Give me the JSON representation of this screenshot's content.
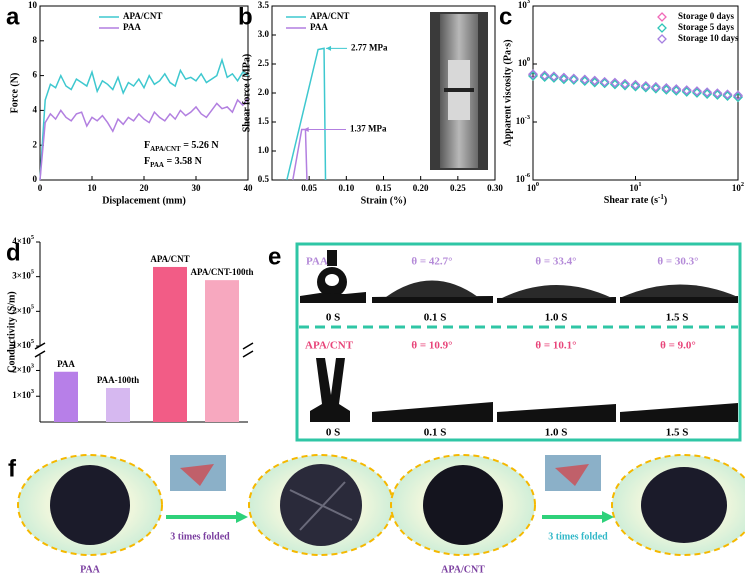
{
  "chart_data": [
    {
      "type": "line",
      "panel_label": "a",
      "x_label": "Displacement (mm)",
      "y_label": "Force (N)",
      "x": [
        0,
        1,
        2,
        3,
        4,
        5,
        6,
        7,
        8,
        9,
        10,
        11,
        12,
        13,
        14,
        15,
        16,
        17,
        18,
        19,
        20,
        21,
        22,
        23,
        24,
        25,
        26,
        27,
        28,
        29,
        30,
        31,
        32,
        33,
        34,
        35,
        36,
        37,
        38,
        39,
        40
      ],
      "series": [
        {
          "name": "APA/CNT",
          "color": "#3ec8cf",
          "values": [
            0,
            4.6,
            5.5,
            5.3,
            6.0,
            5.4,
            5.2,
            5.8,
            5.6,
            5.4,
            6.2,
            5.1,
            5.7,
            5.5,
            5.2,
            5.9,
            5.0,
            5.6,
            5.4,
            5.8,
            5.3,
            6.0,
            5.5,
            5.7,
            6.1,
            5.6,
            5.4,
            6.3,
            5.8,
            5.9,
            5.7,
            6.1,
            5.6,
            5.8,
            6.0,
            6.9,
            5.9,
            6.1,
            5.7,
            6.2,
            6.0
          ]
        },
        {
          "name": "PAA",
          "color": "#b27fe0",
          "values": [
            0,
            3.3,
            3.8,
            3.5,
            4.0,
            3.6,
            3.4,
            3.8,
            3.9,
            3.1,
            3.6,
            3.4,
            3.7,
            3.3,
            2.8,
            3.5,
            3.2,
            3.6,
            3.4,
            3.8,
            3.5,
            3.3,
            3.9,
            3.6,
            3.4,
            3.8,
            3.5,
            4.0,
            3.7,
            3.9,
            4.2,
            3.8,
            3.6,
            4.0,
            4.4,
            4.1,
            4.2,
            3.9,
            4.6,
            4.3,
            4.7
          ]
        }
      ],
      "xlim": [
        0,
        40
      ],
      "xticks": [
        0,
        10,
        20,
        30,
        40
      ],
      "ylim": [
        0,
        10
      ],
      "yticks": [
        0,
        2,
        4,
        6,
        8,
        10
      ],
      "legend": "upper center",
      "annotations": [
        {
          "text": "F",
          "sub": "APA/CNT",
          "rest": " = 5.26 N",
          "color": "#3ec8cf"
        },
        {
          "text": "F",
          "sub": "PAA",
          "rest": " = 3.58 N",
          "color": "#b27fe0"
        }
      ]
    },
    {
      "type": "line",
      "panel_label": "b",
      "x_label": "Strain (%)",
      "y_label": "Shear force (MPa)",
      "series": [
        {
          "name": "APA/CNT",
          "color": "#3ec8cf",
          "x": [
            0.02,
            0.062,
            0.07,
            0.072
          ],
          "values": [
            0.5,
            2.75,
            2.77,
            0.5
          ],
          "peak_label": "2.77 MPa"
        },
        {
          "name": "PAA",
          "color": "#b27fe0",
          "x": [
            0.028,
            0.04,
            0.045,
            0.047
          ],
          "values": [
            0.5,
            1.37,
            1.37,
            0.5
          ],
          "peak_label": "1.37 MPa"
        }
      ],
      "xlim": [
        0,
        0.3
      ],
      "xticks": [
        0.05,
        {
          "value": 0.1,
          "label": "0.10"
        },
        0.15,
        {
          "value": 0.2,
          "label": "0.20"
        },
        0.25,
        {
          "value": 0.3,
          "label": "0.30"
        }
      ],
      "ylim": [
        0.5,
        3.5
      ],
      "yticks": [
        0.5,
        {
          "value": 1,
          "label": "1.0"
        },
        1.5,
        {
          "value": 2,
          "label": "2.0"
        },
        2.5,
        {
          "value": 3,
          "label": "3.0"
        },
        3.5
      ],
      "legend": "upper left"
    },
    {
      "type": "scatter",
      "panel_label": "c",
      "x_label": {
        "text": "Shear rate (s",
        "sup": "-1",
        "end": ")"
      },
      "y_label": "Apparent viscosity (Pa·s)",
      "xlog": true,
      "ylog": true,
      "x": [
        1,
        1.3,
        1.6,
        2,
        2.5,
        3.2,
        4,
        5,
        6.3,
        7.9,
        10,
        12.6,
        15.8,
        20,
        25,
        31.6,
        39.8,
        50,
        63,
        79,
        100
      ],
      "series": [
        {
          "name": "Storage 0 days",
          "color": "#f06ab8",
          "values": [
            0.27,
            0.234,
            0.208,
            0.184,
            0.163,
            0.142,
            0.126,
            0.112,
            0.098,
            0.087,
            0.076,
            0.067,
            0.059,
            0.052,
            0.046,
            0.041,
            0.036,
            0.031,
            0.028,
            0.024,
            0.021
          ]
        },
        {
          "name": "Storage 5 days",
          "color": "#2fc6b8",
          "values": [
            0.24,
            0.21,
            0.19,
            0.16,
            0.15,
            0.13,
            0.11,
            0.1,
            0.087,
            0.077,
            0.068,
            0.06,
            0.053,
            0.046,
            0.041,
            0.036,
            0.032,
            0.028,
            0.025,
            0.022,
            0.019
          ]
        },
        {
          "name": "Storage 10 days",
          "color": "#a57fe0",
          "values": [
            0.3,
            0.26,
            0.23,
            0.2,
            0.18,
            0.16,
            0.14,
            0.12,
            0.11,
            0.096,
            0.085,
            0.074,
            0.066,
            0.058,
            0.051,
            0.045,
            0.04,
            0.035,
            0.031,
            0.027,
            0.024
          ]
        }
      ],
      "xlim": [
        1,
        100
      ],
      "xticks": [
        {
          "value": 1,
          "label": "10",
          "exponent": "0"
        },
        {
          "value": 10,
          "label": "10",
          "exponent": "1"
        },
        {
          "value": 100,
          "label": "10",
          "exponent": "2"
        }
      ],
      "ylim": [
        1e-06,
        1000
      ],
      "yticks": [
        {
          "value": 1e-06,
          "label": "10",
          "exponent": "-6"
        },
        {
          "value": 0.001,
          "label": "10",
          "exponent": "-3"
        },
        {
          "value": 1,
          "label": "10",
          "exponent": "0"
        },
        {
          "value": 1000,
          "label": "10",
          "exponent": "3"
        }
      ],
      "legend": "upper right"
    },
    {
      "type": "bar",
      "panel_label": "d",
      "y_label": "Conductivity (S/m)",
      "categories": [
        "PAA",
        "PAA-100th",
        "APA/CNT",
        "APA/CNT-100th"
      ],
      "values": [
        1950,
        1320,
        328000,
        290000
      ],
      "colors": [
        "#b77fe8",
        "#d6b8f0",
        "#f25c86",
        "#f7a8bf"
      ],
      "y_segments": [
        {
          "ylim": [
            0,
            2600
          ],
          "yticks": [
            {
              "value": 1000,
              "label": "1×10",
              "exponent": "3"
            },
            {
              "value": 2000,
              "label": "2×10",
              "exponent": "3"
            }
          ]
        },
        {
          "ylim": [
            100000,
            400000
          ],
          "yticks": [
            {
              "value": 100000,
              "label": "1×10",
              "exponent": "5"
            },
            {
              "value": 200000,
              "label": "2×10",
              "exponent": "5"
            },
            {
              "value": 300000,
              "label": "3×10",
              "exponent": "5"
            },
            {
              "value": 400000,
              "label": "4×10",
              "exponent": "5"
            }
          ]
        }
      ]
    }
  ],
  "panel_e": {
    "panel_label": "e",
    "rows": [
      {
        "material": "PAA",
        "angles": [
          "θ = 42.7°",
          "θ = 33.4°",
          "θ = 30.3°"
        ],
        "times": [
          "0 S",
          "0.1 S",
          "1.0 S",
          "1.5 S"
        ]
      },
      {
        "material": "APA/CNT",
        "angles": [
          "θ = 10.9°",
          "θ = 10.1°",
          "θ = 9.0°"
        ],
        "times": [
          "0 S",
          "0.1 S",
          "1.0 S",
          "1.5 S"
        ]
      }
    ]
  },
  "panel_f": {
    "panel_label": "f",
    "fold_labels": [
      "3 times folded",
      "3 times folded"
    ],
    "sample_labels": [
      "PAA",
      "APA/CNT"
    ]
  }
}
